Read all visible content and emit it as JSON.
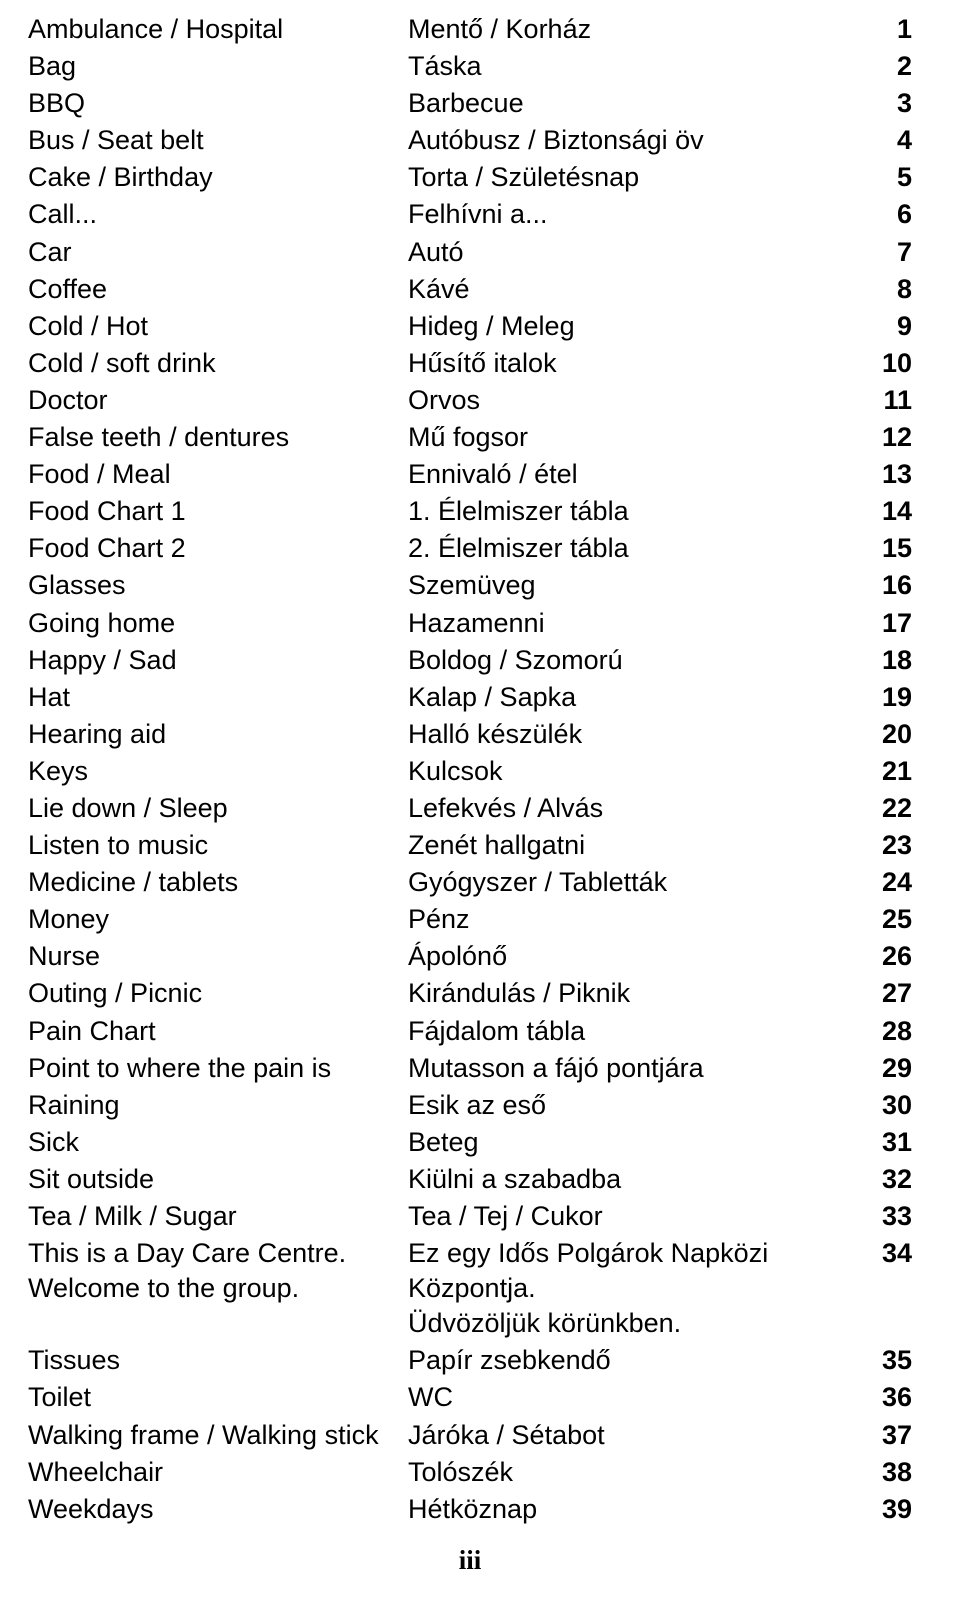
{
  "page_number_label": "iii",
  "rows": [
    {
      "en": "Ambulance / Hospital",
      "hu": "Mentő / Korház",
      "num": "1"
    },
    {
      "en": "Bag",
      "hu": "Táska",
      "num": "2"
    },
    {
      "en": "BBQ",
      "hu": "Barbecue",
      "num": "3"
    },
    {
      "en": "Bus / Seat belt",
      "hu": "Autóbusz / Biztonsági öv",
      "num": "4"
    },
    {
      "en": "Cake / Birthday",
      "hu": "Torta / Születésnap",
      "num": "5"
    },
    {
      "en": "Call...",
      "hu": "Felhívni a...",
      "num": "6"
    },
    {
      "en": "Car",
      "hu": "Autó",
      "num": "7"
    },
    {
      "en": "Coffee",
      "hu": "Kávé",
      "num": "8"
    },
    {
      "en": "Cold / Hot",
      "hu": "Hideg / Meleg",
      "num": "9"
    },
    {
      "en": "Cold / soft drink",
      "hu": "Hűsítő italok",
      "num": "10"
    },
    {
      "en": "Doctor",
      "hu": "Orvos",
      "num": "11"
    },
    {
      "en": "False teeth / dentures",
      "hu": "Mű fogsor",
      "num": "12"
    },
    {
      "en": "Food / Meal",
      "hu": "Ennivaló / étel",
      "num": "13"
    },
    {
      "en": "Food Chart 1",
      "hu": "1. Élelmiszer tábla",
      "num": "14"
    },
    {
      "en": "Food Chart 2",
      "hu": "2. Élelmiszer tábla",
      "num": "15"
    },
    {
      "en": "Glasses",
      "hu": "Szemüveg",
      "num": "16"
    },
    {
      "en": "Going home",
      "hu": "Hazamenni",
      "num": "17"
    },
    {
      "en": "Happy / Sad",
      "hu": "Boldog / Szomorú",
      "num": "18"
    },
    {
      "en": "Hat",
      "hu": "Kalap / Sapka",
      "num": "19"
    },
    {
      "en": "Hearing aid",
      "hu": "Halló készülék",
      "num": "20"
    },
    {
      "en": "Keys",
      "hu": "Kulcsok",
      "num": "21"
    },
    {
      "en": "Lie down / Sleep",
      "hu": "Lefekvés / Alvás",
      "num": "22"
    },
    {
      "en": "Listen to music",
      "hu": "Zenét hallgatni",
      "num": "23"
    },
    {
      "en": "Medicine / tablets",
      "hu": "Gyógyszer / Tabletták",
      "num": "24"
    },
    {
      "en": "Money",
      "hu": "Pénz",
      "num": "25"
    },
    {
      "en": "Nurse",
      "hu": "Ápolónő",
      "num": "26"
    },
    {
      "en": "Outing / Picnic",
      "hu": "Kirándulás / Piknik",
      "num": "27"
    },
    {
      "en": "Pain Chart",
      "hu": "Fájdalom tábla",
      "num": "28"
    },
    {
      "en": "Point to where the pain is",
      "hu": "Mutasson a fájó pontjára",
      "num": "29"
    },
    {
      "en": "Raining",
      "hu": "Esik az eső",
      "num": "30"
    },
    {
      "en": "Sick",
      "hu": "Beteg",
      "num": "31"
    },
    {
      "en": "Sit outside",
      "hu": "Kiülni a szabadba",
      "num": "32"
    },
    {
      "en": "Tea / Milk / Sugar",
      "hu": "Tea / Tej / Cukor",
      "num": "33"
    },
    {
      "en": "This is a Day Care Centre.\nWelcome to the group.",
      "hu": "Ez egy Idős Polgárok Napközi Központja.\nÜdvözöljük körünkben.",
      "num": "34"
    },
    {
      "en": "Tissues",
      "hu": "Papír zsebkendő",
      "num": "35"
    },
    {
      "en": "Toilet",
      "hu": "WC",
      "num": "36"
    },
    {
      "en": "Walking frame / Walking stick",
      "hu": "Járóka / Sétabot",
      "num": "37"
    },
    {
      "en": "Wheelchair",
      "hu": "Tolószék",
      "num": "38"
    },
    {
      "en": "Weekdays",
      "hu": "Hétköznap",
      "num": "39"
    }
  ]
}
